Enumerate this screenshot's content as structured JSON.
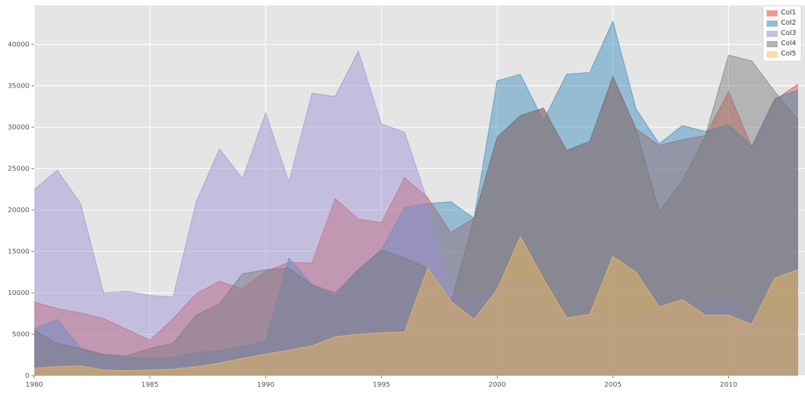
{
  "chart_data": {
    "type": "area",
    "stacked": false,
    "title": "",
    "xlabel": "",
    "ylabel": "",
    "x": [
      1980,
      1981,
      1982,
      1983,
      1984,
      1985,
      1986,
      1987,
      1988,
      1989,
      1990,
      1991,
      1992,
      1993,
      1994,
      1995,
      1996,
      1997,
      1998,
      1999,
      2000,
      2001,
      2002,
      2003,
      2004,
      2005,
      2006,
      2007,
      2008,
      2009,
      2010,
      2011,
      2012,
      2013
    ],
    "series": [
      {
        "name": "Col1",
        "color": "#E24A33",
        "values": [
          8900,
          8100,
          7600,
          6900,
          5600,
          4300,
          6900,
          9900,
          11400,
          10500,
          12600,
          13700,
          13600,
          21400,
          18900,
          18500,
          23900,
          21500,
          17300,
          19000,
          28800,
          31400,
          32300,
          27200,
          28300,
          36200,
          29800,
          27800,
          28500,
          29000,
          34300,
          27600,
          33300,
          35200
        ]
      },
      {
        "name": "Col2",
        "color": "#348ABD",
        "values": [
          5600,
          6800,
          3300,
          2500,
          2200,
          2100,
          2200,
          2800,
          3000,
          3500,
          4200,
          14200,
          11000,
          9500,
          12800,
          15200,
          20300,
          20800,
          21000,
          19000,
          35600,
          36400,
          30800,
          36400,
          36600,
          42800,
          32200,
          28000,
          30200,
          29500,
          30300,
          27700,
          33500,
          34500
        ]
      },
      {
        "name": "Col3",
        "color": "#988ED5",
        "values": [
          22500,
          24800,
          20800,
          10000,
          10200,
          9700,
          9500,
          21000,
          27400,
          23800,
          31700,
          23400,
          34100,
          33700,
          39200,
          30400,
          29400,
          21000,
          10500,
          9000,
          10500,
          11700,
          9000,
          7000,
          7300,
          7000,
          7000,
          8000,
          9200,
          9200,
          9000,
          7500,
          6200,
          6200
        ]
      },
      {
        "name": "Col4",
        "color": "#777777",
        "values": [
          5500,
          3900,
          3300,
          2600,
          2400,
          3300,
          3900,
          7300,
          8700,
          12300,
          12800,
          13000,
          11000,
          10000,
          12800,
          15200,
          14200,
          13000,
          8800,
          19000,
          28800,
          31400,
          32300,
          27200,
          28300,
          36000,
          29800,
          19800,
          23500,
          29000,
          38700,
          38000,
          34300,
          30900
        ]
      },
      {
        "name": "Col5",
        "color": "#FBC15E",
        "values": [
          900,
          1100,
          1200,
          700,
          600,
          700,
          800,
          1100,
          1500,
          2100,
          2600,
          3100,
          3600,
          4700,
          5000,
          5200,
          5300,
          13000,
          9000,
          6800,
          10400,
          16800,
          11700,
          7000,
          7400,
          14400,
          12500,
          8300,
          9200,
          7300,
          7300,
          6200,
          11800,
          12800
        ]
      }
    ],
    "x_ticks": [
      1980,
      1985,
      1990,
      1995,
      2000,
      2005,
      2010
    ],
    "y_ticks": [
      0,
      5000,
      10000,
      15000,
      20000,
      25000,
      30000,
      35000,
      40000
    ],
    "xlim": [
      1980,
      2013.3
    ],
    "ylim": [
      0,
      44700
    ],
    "grid": true,
    "legend_position": "upper right",
    "fill_alpha": 0.45,
    "edge_alpha": 0.65,
    "style": {
      "fig_bg": "#ffffff",
      "plot_bg": "#E5E5E5",
      "grid_color": "#ffffff",
      "tick_color": "#555555",
      "tick_font_size": 10
    }
  }
}
